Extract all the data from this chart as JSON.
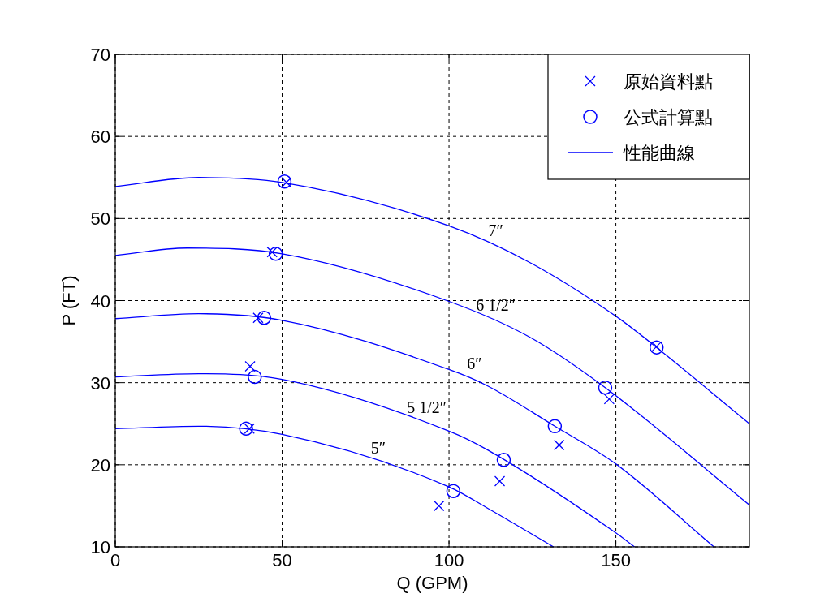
{
  "chart_data": {
    "type": "line",
    "xlabel": "Q (GPM)",
    "ylabel": "P (FT)",
    "xlim": [
      0,
      190
    ],
    "ylim": [
      10,
      70
    ],
    "xticks": [
      0,
      50,
      100,
      150
    ],
    "yticks": [
      10,
      20,
      30,
      40,
      50,
      60,
      70
    ],
    "grid": true,
    "legend": "top right",
    "series": [
      {
        "name": "原始資料點",
        "type": "scatter",
        "marker": "cross",
        "color": "#0000ff",
        "x": [
          40.2,
          40.4,
          42.8,
          47.0,
          51.3,
          97.0,
          115.2,
          133.0,
          148.0,
          162.2
        ],
        "values": [
          24.4,
          32.0,
          37.9,
          45.9,
          54.4,
          15.0,
          18.0,
          22.4,
          28.0,
          34.4
        ]
      },
      {
        "name": "公式計算點",
        "type": "scatter",
        "marker": "circle",
        "color": "#0000ff",
        "x": [
          39.2,
          41.8,
          44.6,
          48.1,
          50.7,
          101.3,
          116.4,
          131.7,
          146.8,
          162.2
        ],
        "values": [
          24.4,
          30.7,
          37.9,
          45.7,
          54.5,
          16.8,
          20.6,
          24.7,
          29.4,
          34.3
        ]
      },
      {
        "name": "性能曲線",
        "color": "#0000ff",
        "x": [
          0,
          25,
          50,
          100,
          111.6,
          131.3
        ],
        "values": [
          24.4,
          24.7,
          23.7,
          17.3,
          14.7,
          10
        ]
      },
      {
        "color": "#0000ff",
        "x": [
          0,
          25,
          50,
          100,
          111.6,
          150,
          155.6
        ],
        "values": [
          30.7,
          31.1,
          30.4,
          24.1,
          21.8,
          11.7,
          10
        ]
      },
      {
        "color": "#0000ff",
        "x": [
          0,
          25,
          50,
          100,
          111.6,
          131.7,
          150,
          179.4
        ],
        "values": [
          37.8,
          38.4,
          37.6,
          31.6,
          29.6,
          24.7,
          20.1,
          10
        ]
      },
      {
        "color": "#0000ff",
        "x": [
          0,
          21.5,
          50,
          100,
          124.4,
          146.8,
          190
        ],
        "values": [
          45.5,
          46.4,
          45.7,
          39.9,
          35.5,
          29.4,
          15.1
        ]
      },
      {
        "color": "#0000ff",
        "x": [
          0,
          25,
          50,
          100,
          124.4,
          150,
          162.2,
          190
        ],
        "values": [
          53.9,
          55.0,
          54.4,
          49.1,
          44.6,
          38.1,
          34.3,
          25.0
        ]
      }
    ],
    "annotations": [
      "5″",
      "5 1/2″",
      "6″",
      "6 1/2″",
      "7″"
    ]
  }
}
